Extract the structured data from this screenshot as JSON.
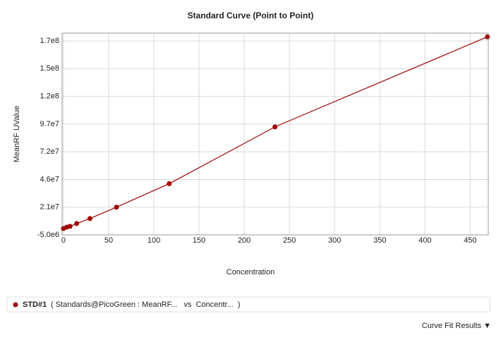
{
  "chart_data": {
    "type": "line",
    "title": "Standard Curve (Point to Point)",
    "x_label": "Concentration",
    "y_label": "MeanRF UValue",
    "x": [
      0,
      3.7,
      7.3,
      14.6,
      29.3,
      58.6,
      117,
      234,
      469
    ],
    "series": [
      {
        "name": "STD#1",
        "description": "( Standards@PicoGreen : MeanRF...   vs  Concentr...  )",
        "color": "#a00000",
        "values": [
          900000,
          2200000,
          2900000,
          5500000,
          10100000,
          20600000,
          42300000,
          94800000,
          178000000
        ]
      }
    ],
    "xlim": [
      -1.5,
      470
    ],
    "xticks": [
      0,
      50,
      100,
      150,
      200,
      250,
      300,
      350,
      400,
      450
    ],
    "ylim": [
      -5000000,
      181400000
    ],
    "yticks": [
      {
        "value": -5000000,
        "label": "-5.0e6"
      },
      {
        "value": 20600000,
        "label": "2.1e7"
      },
      {
        "value": 46200000,
        "label": "4.6e7"
      },
      {
        "value": 71800000,
        "label": "7.2e7"
      },
      {
        "value": 97400000,
        "label": "9.7e7"
      },
      {
        "value": 123000000,
        "label": "1.2e8"
      },
      {
        "value": 148600000,
        "label": "1.5e8"
      },
      {
        "value": 174200000,
        "label": "1.7e8"
      }
    ],
    "grid": true,
    "markers": true,
    "footer_link": "Curve Fit Results ▼"
  }
}
